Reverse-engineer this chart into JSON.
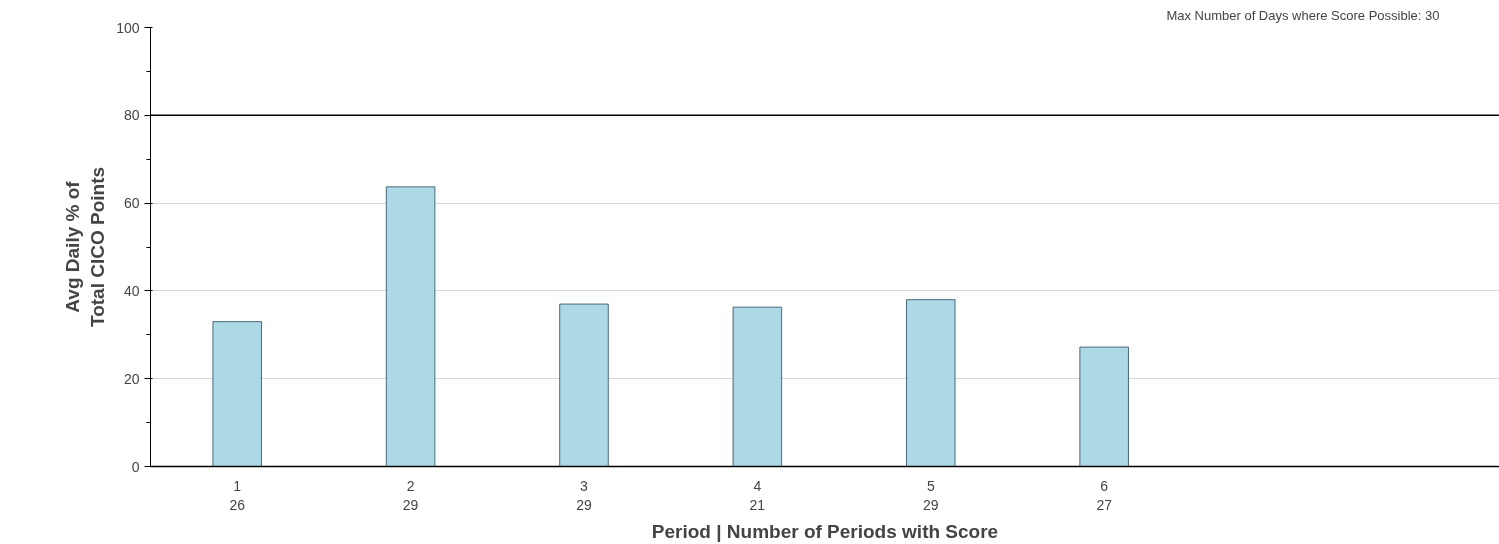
{
  "chart_data": {
    "type": "bar",
    "categories": [
      "1\n26",
      "2\n29",
      "3\n29",
      "4\n21",
      "5\n29",
      "6\n27",
      null,
      null
    ],
    "values": [
      33,
      63.7,
      37,
      36.3,
      38,
      27.2,
      null,
      null
    ],
    "color": "#add8e6",
    "xlabel": "Period | Number of Periods with Score",
    "ylabel": "Avg Daily % of\nTotal CICO Points",
    "ylim": [
      0,
      100
    ],
    "yticks": [
      0,
      20,
      40,
      60,
      80,
      100
    ],
    "grid": "y",
    "ref_lines": [
      {
        "axis": "y",
        "value": 80,
        "label": null,
        "color": "#000000"
      }
    ],
    "annotations": [
      "Max Number of Days where Score Possible: 30"
    ]
  }
}
